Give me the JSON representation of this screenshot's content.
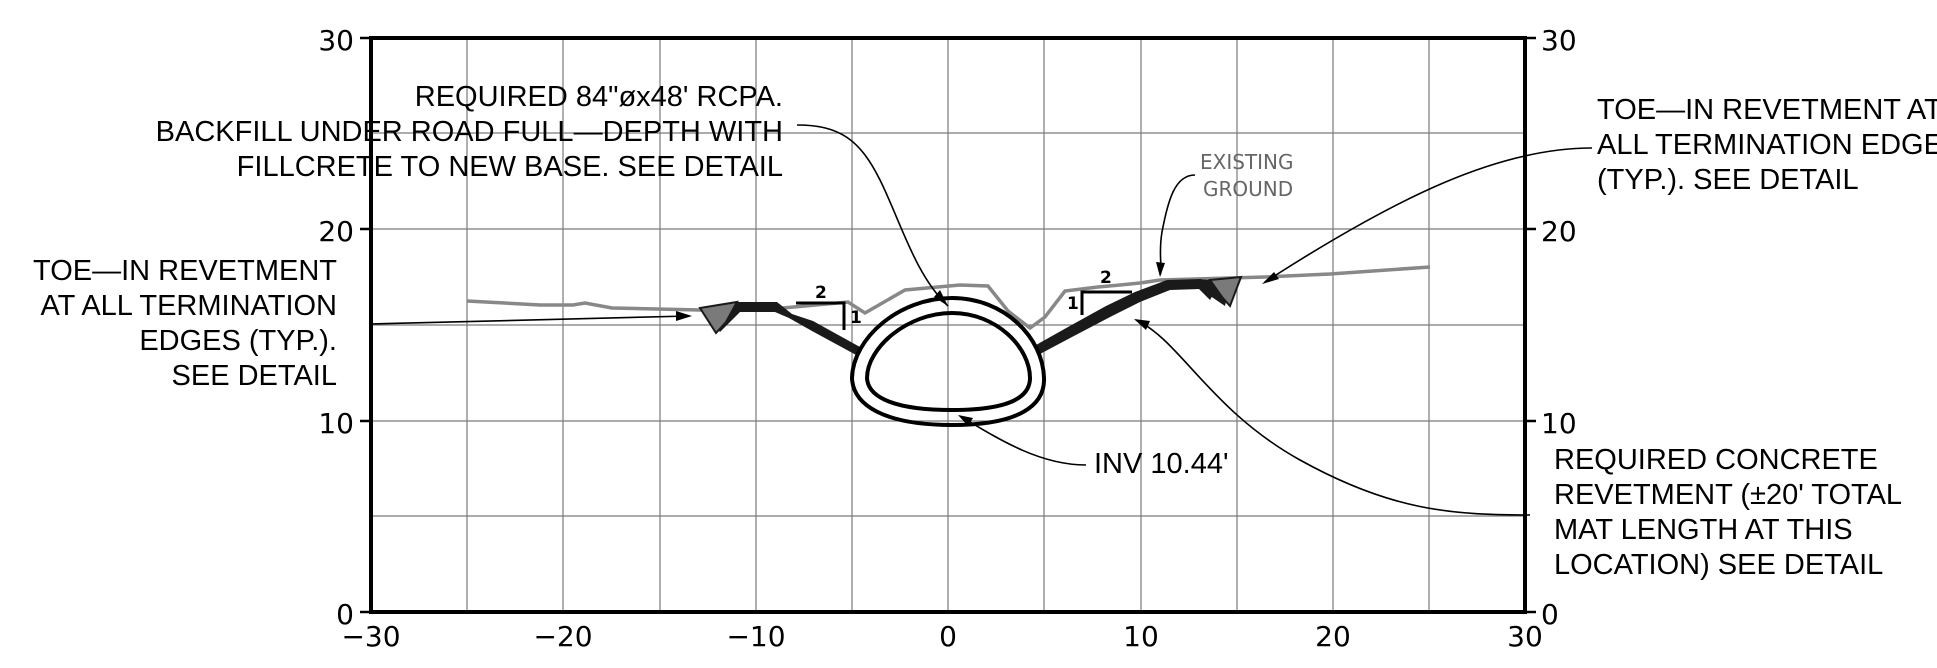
{
  "axes": {
    "x_ticks": [
      "−30",
      "−20",
      "−10",
      "0",
      "10",
      "20",
      "30"
    ],
    "y_ticks_left": [
      "0",
      "10",
      "20",
      "30"
    ],
    "y_ticks_right": [
      "0",
      "10",
      "20",
      "30"
    ]
  },
  "labels": {
    "existing_ground": [
      "EXISTING",
      "GROUND"
    ],
    "slope_run": "2",
    "slope_rise": "1"
  },
  "notes": {
    "pipe": [
      "REQUIRED 84\"øx48' RCPA.",
      "BACKFILL UNDER ROAD FULL—DEPTH WITH",
      "FILLCRETE TO NEW BASE. SEE DETAIL"
    ],
    "toe_left": [
      "TOE—IN REVETMENT",
      "AT ALL TERMINATION",
      "EDGES (TYP.).",
      "SEE DETAIL"
    ],
    "toe_right": [
      "TOE—IN REVETMENT AT",
      "ALL TERMINATION EDGES",
      "(TYP.). SEE DETAIL"
    ],
    "invert": "INV 10.44'",
    "revetment": [
      "REQUIRED CONCRETE",
      "REVETMENT (±20' TOTAL",
      "MAT LENGTH AT THIS",
      "LOCATION) SEE DETAIL"
    ]
  },
  "colors": {
    "grid": "#7a7a7a",
    "ground_line": "#888888",
    "revetment": "#1a1a1a",
    "toe_fill": "#7a7a7a"
  }
}
